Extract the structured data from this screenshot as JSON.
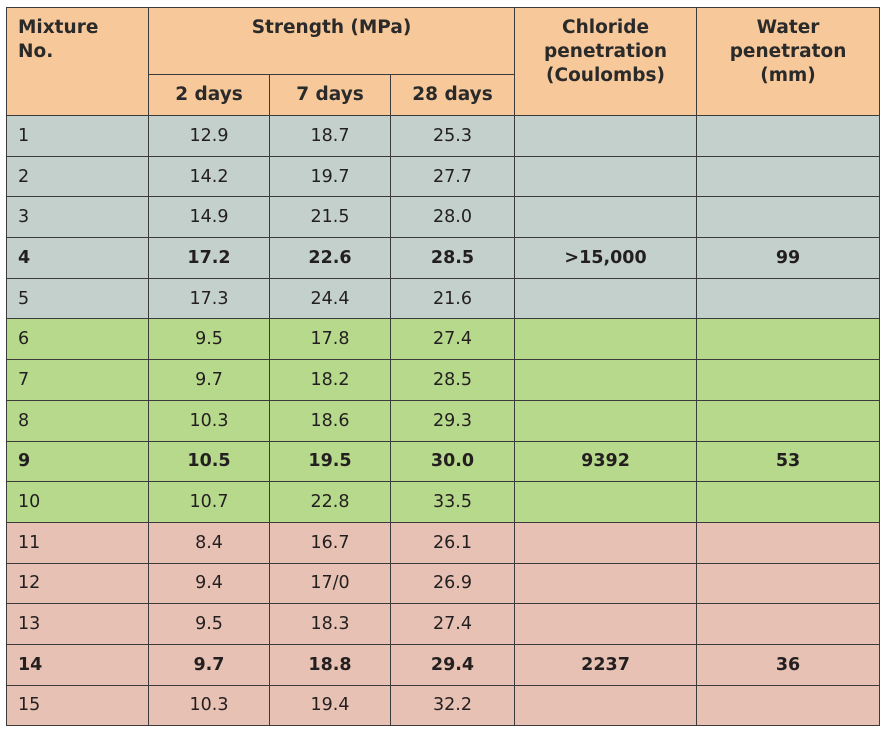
{
  "table": {
    "headers": {
      "mixture": [
        "Mixture",
        "No."
      ],
      "strength": "Strength (MPa)",
      "days": [
        "2 days",
        "7 days",
        "28 days"
      ],
      "chloride": [
        "Chloride",
        "penetration",
        "(Coulombs)"
      ],
      "water": [
        "Water",
        "penetraton",
        "(mm)"
      ]
    },
    "groups": [
      {
        "color": "#c4d0cb",
        "rows": [
          {
            "no": "1",
            "d2": "12.9",
            "d7": "18.7",
            "d28": "25.3",
            "chloride": "",
            "water": ""
          },
          {
            "no": "2",
            "d2": "14.2",
            "d7": "19.7",
            "d28": "27.7",
            "chloride": "",
            "water": ""
          },
          {
            "no": "3",
            "d2": "14.9",
            "d7": "21.5",
            "d28": "28.0",
            "chloride": "",
            "water": ""
          },
          {
            "no": "4",
            "d2": "17.2",
            "d7": "22.6",
            "d28": "28.5",
            "chloride": ">15,000",
            "water": "99"
          },
          {
            "no": "5",
            "d2": "17.3",
            "d7": "24.4",
            "d28": "21.6",
            "chloride": "",
            "water": ""
          }
        ]
      },
      {
        "color": "#b7d98c",
        "rows": [
          {
            "no": "6",
            "d2": "9.5",
            "d7": "17.8",
            "d28": "27.4",
            "chloride": "",
            "water": ""
          },
          {
            "no": "7",
            "d2": "9.7",
            "d7": "18.2",
            "d28": "28.5",
            "chloride": "",
            "water": ""
          },
          {
            "no": "8",
            "d2": "10.3",
            "d7": "18.6",
            "d28": "29.3",
            "chloride": "",
            "water": ""
          },
          {
            "no": "9",
            "d2": "10.5",
            "d7": "19.5",
            "d28": "30.0",
            "chloride": "9392",
            "water": "53"
          },
          {
            "no": "10",
            "d2": "10.7",
            "d7": "22.8",
            "d28": "33.5",
            "chloride": "",
            "water": ""
          }
        ]
      },
      {
        "color": "#e7c1b3",
        "rows": [
          {
            "no": "11",
            "d2": "8.4",
            "d7": "16.7",
            "d28": "26.1",
            "chloride": "",
            "water": ""
          },
          {
            "no": "12",
            "d2": "9.4",
            "d7": "17/0",
            "d28": "26.9",
            "chloride": "",
            "water": ""
          },
          {
            "no": "13",
            "d2": "9.5",
            "d7": "18.3",
            "d28": "27.4",
            "chloride": "",
            "water": ""
          },
          {
            "no": "14",
            "d2": "9.7",
            "d7": "18.8",
            "d28": "29.4",
            "chloride": "2237",
            "water": "36"
          },
          {
            "no": "15",
            "d2": "10.3",
            "d7": "19.4",
            "d28": "32.2",
            "chloride": "",
            "water": ""
          }
        ]
      }
    ],
    "header_color": "#f6c89a"
  }
}
